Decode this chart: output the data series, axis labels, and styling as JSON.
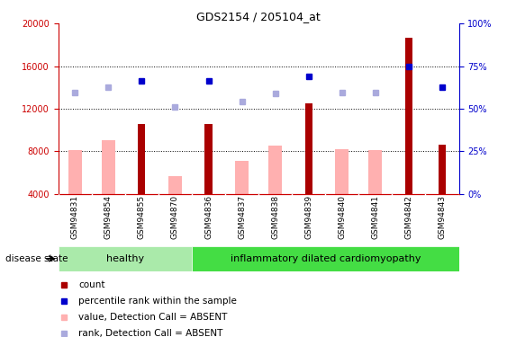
{
  "title": "GDS2154 / 205104_at",
  "samples": [
    "GSM94831",
    "GSM94854",
    "GSM94855",
    "GSM94870",
    "GSM94836",
    "GSM94837",
    "GSM94838",
    "GSM94839",
    "GSM94840",
    "GSM94841",
    "GSM94842",
    "GSM94843"
  ],
  "count_values": [
    null,
    null,
    10600,
    null,
    10600,
    null,
    null,
    12500,
    null,
    null,
    18700,
    8600
  ],
  "pink_values": [
    8100,
    9000,
    null,
    5700,
    null,
    7100,
    8500,
    null,
    8200,
    8100,
    null,
    null
  ],
  "blue_square_values": [
    null,
    null,
    14600,
    null,
    14600,
    null,
    null,
    15000,
    null,
    null,
    16000,
    14000
  ],
  "light_blue_values": [
    13500,
    14000,
    null,
    12200,
    null,
    12700,
    13400,
    null,
    13500,
    13500,
    null,
    null
  ],
  "healthy_indices": [
    0,
    1,
    2,
    3
  ],
  "inflammatory_indices": [
    4,
    5,
    6,
    7,
    8,
    9,
    10,
    11
  ],
  "ylim_left": [
    4000,
    20000
  ],
  "ylim_right": [
    0,
    100
  ],
  "yticks_left": [
    4000,
    8000,
    12000,
    16000,
    20000
  ],
  "yticks_right": [
    0,
    25,
    50,
    75,
    100
  ],
  "grid_values": [
    8000,
    12000,
    16000
  ],
  "bar_color_dark_red": "#AA0000",
  "bar_color_pink": "#FFB0B0",
  "dot_color_dark_blue": "#0000CC",
  "dot_color_light_blue": "#AAAADD",
  "healthy_group_color": "#AAEAAA",
  "inflammatory_group_color": "#44DD44",
  "ticklabel_bg_color": "#C8C8C8",
  "disease_state_label": "disease state",
  "healthy_label": "healthy",
  "inflammatory_label": "inflammatory dilated cardiomyopathy",
  "legend_items": [
    "count",
    "percentile rank within the sample",
    "value, Detection Call = ABSENT",
    "rank, Detection Call = ABSENT"
  ],
  "bar_width": 0.4,
  "left_axis_color": "#CC0000",
  "right_axis_color": "#0000CC"
}
